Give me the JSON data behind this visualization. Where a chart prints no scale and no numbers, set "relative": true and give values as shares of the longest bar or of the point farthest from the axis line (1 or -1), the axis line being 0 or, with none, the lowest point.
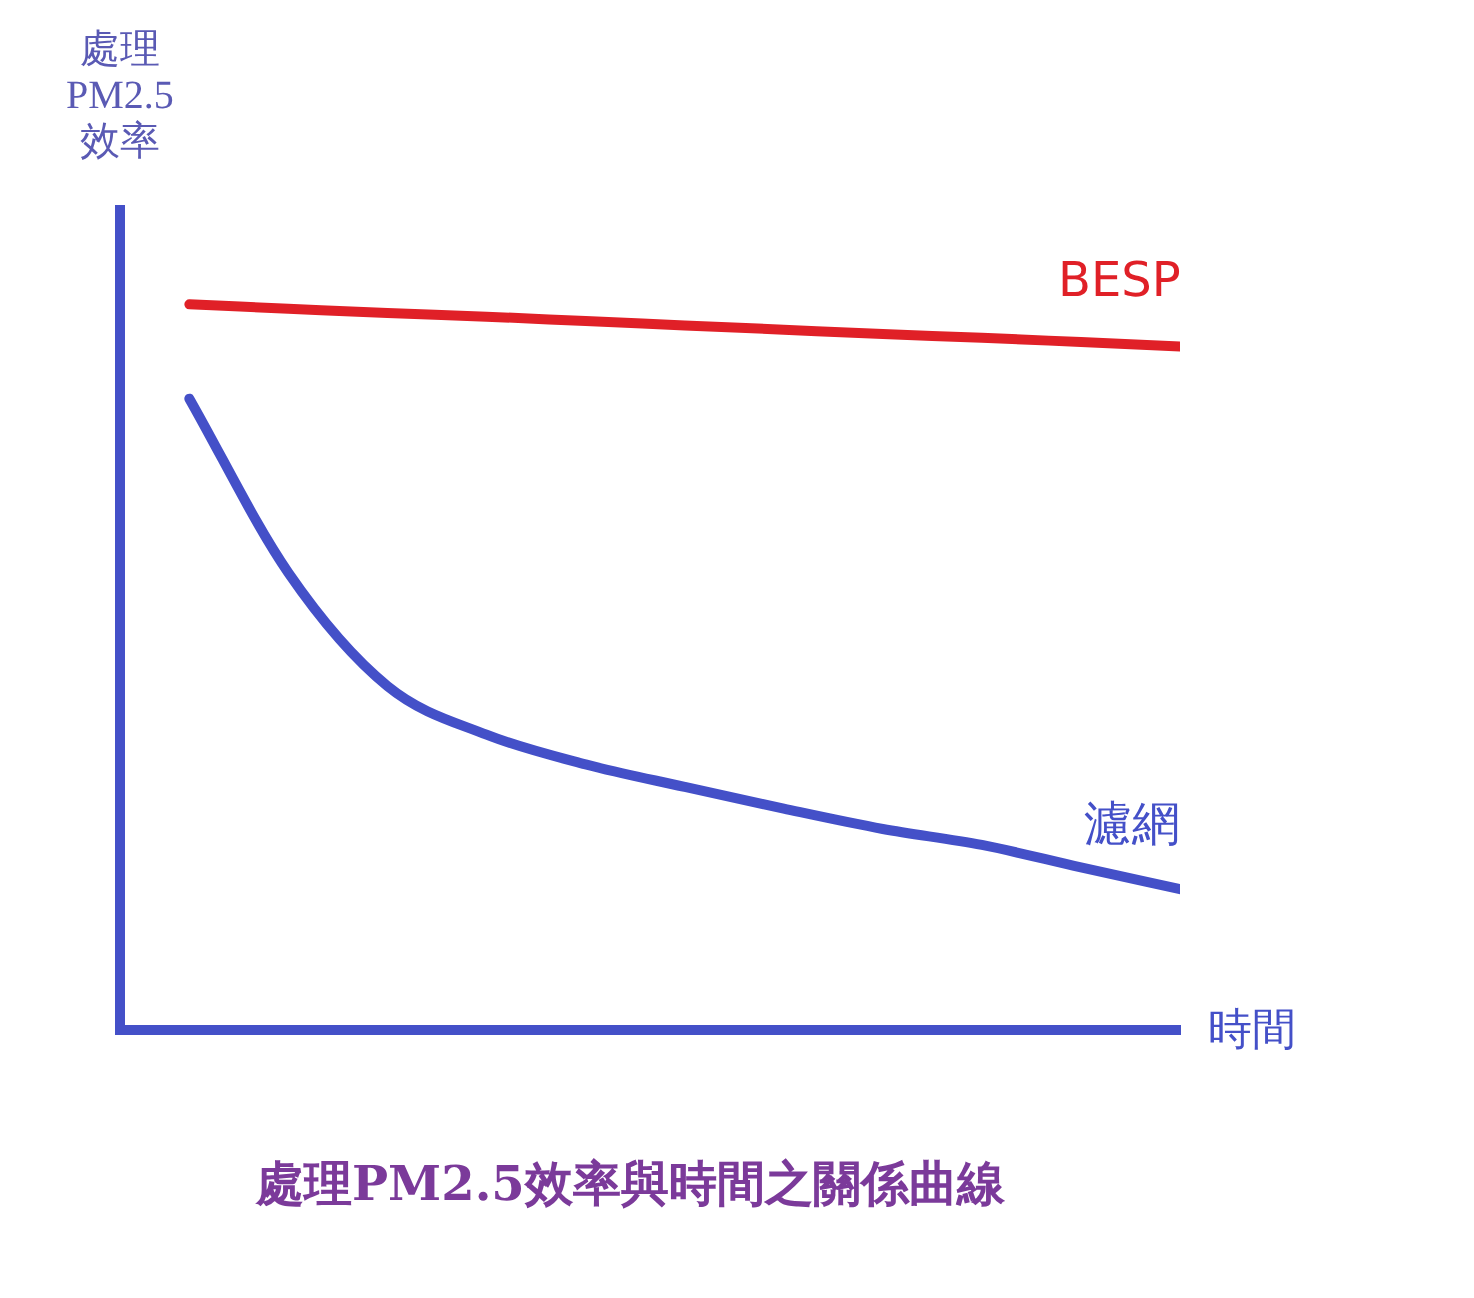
{
  "chart_data": {
    "type": "line",
    "relative": true,
    "title": "處理PM2.5效率與時間之關係曲線",
    "ylabel": "處理\nPM2.5\n效率",
    "xlabel": "時間",
    "categories": [
      null,
      null,
      null,
      null,
      null,
      null,
      null,
      null,
      null,
      null,
      null
    ],
    "legend": false,
    "grid": false,
    "marker": "none",
    "line_style": "solid",
    "series": [
      {
        "name": "BESP",
        "color": "#e02027",
        "values": [
          1,
          0.994,
          0.988,
          0.983,
          0.977,
          0.971,
          0.965,
          0.959,
          0.954,
          0.948,
          0.942
        ]
      },
      {
        "name": "濾網",
        "color": "#4450c8",
        "values": [
          0.87,
          0.63,
          0.474,
          0.407,
          0.366,
          0.335,
          0.305,
          0.277,
          0.255,
          0.224,
          0.194
        ]
      }
    ]
  }
}
